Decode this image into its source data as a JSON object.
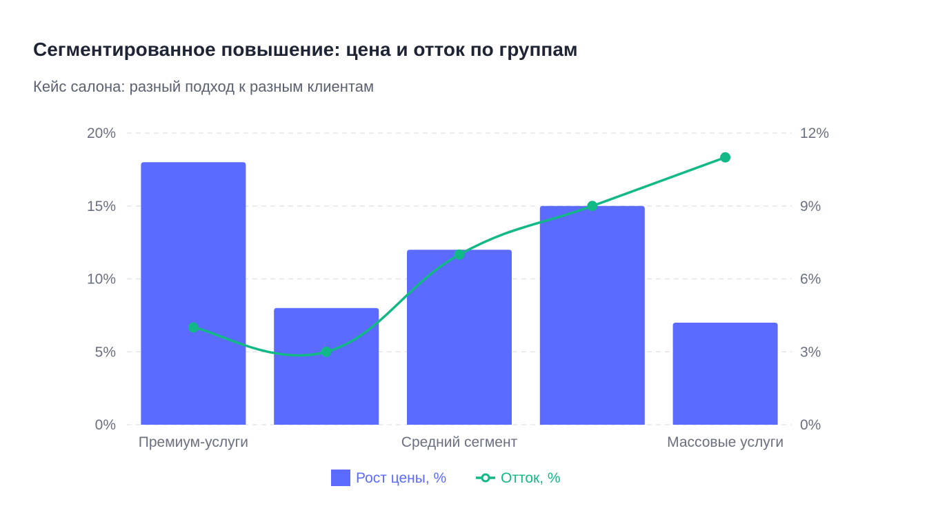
{
  "chart_data": {
    "type": "bar",
    "title": "Сегментированное повышение: цена и отток по группам",
    "subtitle": "Кейс салона: разный подход к разным клиентам",
    "categories": [
      "Премиум-услуги",
      "",
      "Средний сегмент",
      "",
      "Массовые услуги"
    ],
    "series": [
      {
        "name": "Рост цены, %",
        "type": "bar",
        "axis": "left",
        "color": "#5b6bff",
        "values": [
          18,
          8,
          12,
          15,
          7
        ]
      },
      {
        "name": "Отток, %",
        "type": "line",
        "axis": "right",
        "color": "#12b886",
        "values": [
          4,
          3,
          7,
          9,
          11
        ]
      }
    ],
    "y_left": {
      "min": 0,
      "max": 20,
      "ticks": [
        0,
        5,
        10,
        15,
        20
      ],
      "tick_labels": [
        "0%",
        "5%",
        "10%",
        "15%",
        "20%"
      ]
    },
    "y_right": {
      "min": 0,
      "max": 12,
      "ticks": [
        0,
        3,
        6,
        9,
        12
      ],
      "tick_labels": [
        "0%",
        "3%",
        "6%",
        "9%",
        "12%"
      ]
    },
    "grid": true,
    "legend_position": "bottom-center"
  }
}
